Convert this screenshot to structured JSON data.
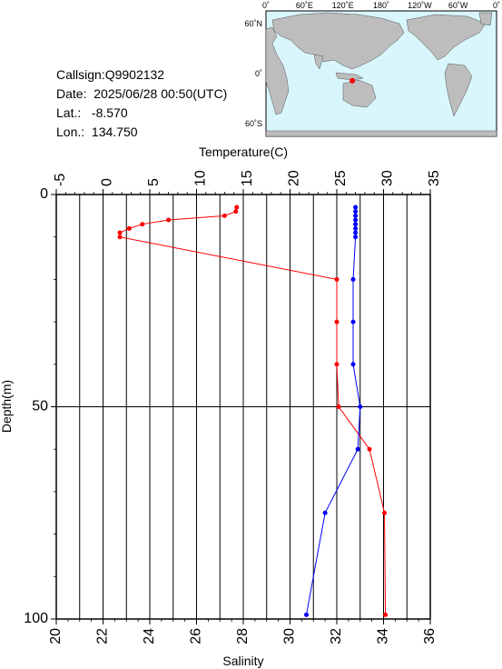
{
  "info": {
    "callsign": "Callsign:Q9902132",
    "date_label": "Date:",
    "date_value": "2025/06/28 00:50(UTC)",
    "lat_label": "Lat.:",
    "lat_value": "-8.570",
    "lon_label": "Lon.:",
    "lon_value": "134.750"
  },
  "map": {
    "top_ticks": [
      "0˚",
      "60˚E",
      "120˚E",
      "180˚",
      "120˚W",
      "60˚W",
      "0˚"
    ],
    "left_ticks": [
      "60˚N",
      "0˚",
      "60˚S"
    ],
    "ocean_color": "#d8f6fb",
    "land_color": "#bdbdbd",
    "marker_color": "#ff0000",
    "marker_lon": 134.75,
    "marker_lat": -8.57
  },
  "chart_data": {
    "type": "line",
    "ylabel": "Depth(m)",
    "ylim": [
      100,
      0
    ],
    "yticks": [
      0,
      50,
      100
    ],
    "top_axis": {
      "label": "Temperature(C)",
      "lim": [
        -5,
        35
      ],
      "ticks": [
        -5,
        0,
        5,
        10,
        15,
        20,
        25,
        30,
        35
      ]
    },
    "bottom_axis": {
      "label": "Salinity",
      "lim": [
        20,
        36
      ],
      "ticks": [
        20,
        22,
        24,
        26,
        28,
        30,
        32,
        34,
        36
      ]
    },
    "grid": true,
    "series": [
      {
        "axis": "top",
        "color": "#ff0000",
        "depth": [
          3,
          4,
          5,
          6,
          7,
          8,
          9,
          10,
          20,
          30,
          40,
          50,
          60,
          75,
          99
        ],
        "values": [
          14.3,
          14.2,
          13.0,
          7.0,
          4.2,
          2.8,
          1.8,
          1.8,
          25.0,
          25.0,
          25.0,
          25.2,
          28.5,
          30.1,
          30.2
        ]
      },
      {
        "axis": "bottom",
        "color": "#0000ff",
        "depth": [
          3,
          4,
          5,
          6,
          7,
          8,
          9,
          10,
          20,
          30,
          40,
          50,
          60,
          75,
          99
        ],
        "values": [
          32.8,
          32.8,
          32.8,
          32.8,
          32.8,
          32.8,
          32.8,
          32.8,
          32.7,
          32.7,
          32.7,
          33.0,
          32.9,
          31.5,
          30.7
        ]
      }
    ]
  }
}
